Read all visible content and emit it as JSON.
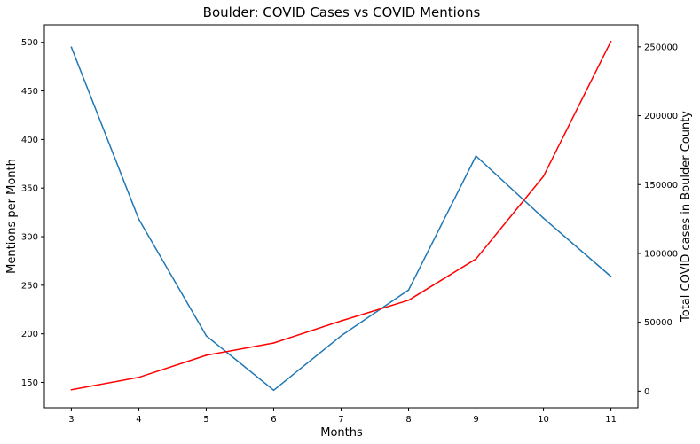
{
  "chart_data": {
    "type": "line",
    "title": "Boulder: COVID Cases vs COVID Mentions",
    "xlabel": "Months",
    "ylabel_left": "Mentions per Month",
    "ylabel_right": "Total COVID cases in Boulder County",
    "x": [
      3,
      4,
      5,
      6,
      7,
      8,
      9,
      10,
      11
    ],
    "xlim": [
      2.6,
      11.4
    ],
    "ylim_left": [
      124,
      518
    ],
    "ylim_right": [
      -12000,
      266000
    ],
    "xticks": [
      3,
      4,
      5,
      6,
      7,
      8,
      9,
      10,
      11
    ],
    "yticks_left": [
      150,
      200,
      250,
      300,
      350,
      400,
      450,
      500
    ],
    "yticks_right": [
      0,
      50000,
      100000,
      150000,
      200000,
      250000
    ],
    "grid": false,
    "series": [
      {
        "axis": "left",
        "color": "#1f77b4",
        "values": [
          495,
          318,
          198,
          142,
          198,
          245,
          383,
          319,
          259
        ]
      },
      {
        "axis": "right",
        "color": "#ff0000",
        "values": [
          1000,
          10000,
          26000,
          35000,
          51000,
          66000,
          96000,
          156000,
          254000
        ]
      }
    ]
  }
}
